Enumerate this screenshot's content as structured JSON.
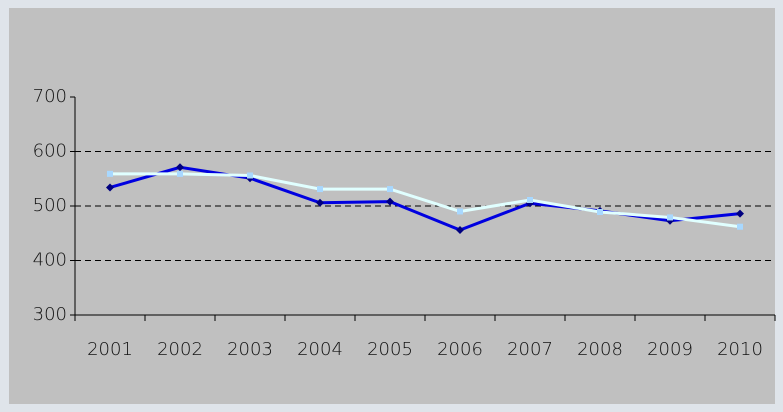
{
  "chart_data": {
    "type": "line",
    "categories": [
      "2001",
      "2002",
      "2003",
      "2004",
      "2005",
      "2006",
      "2007",
      "2008",
      "2009",
      "2010"
    ],
    "series": [
      {
        "color": "#0000e0",
        "values": [
          534,
          571,
          551,
          506,
          508,
          456,
          505,
          491,
          473,
          486
        ]
      },
      {
        "color": "#e0ffff",
        "values": [
          559,
          559,
          556,
          531,
          531,
          490,
          511,
          489,
          479,
          462
        ]
      }
    ],
    "ylim": [
      300,
      700
    ],
    "yticks": [
      300,
      400,
      500,
      600,
      700
    ],
    "grid": true
  }
}
